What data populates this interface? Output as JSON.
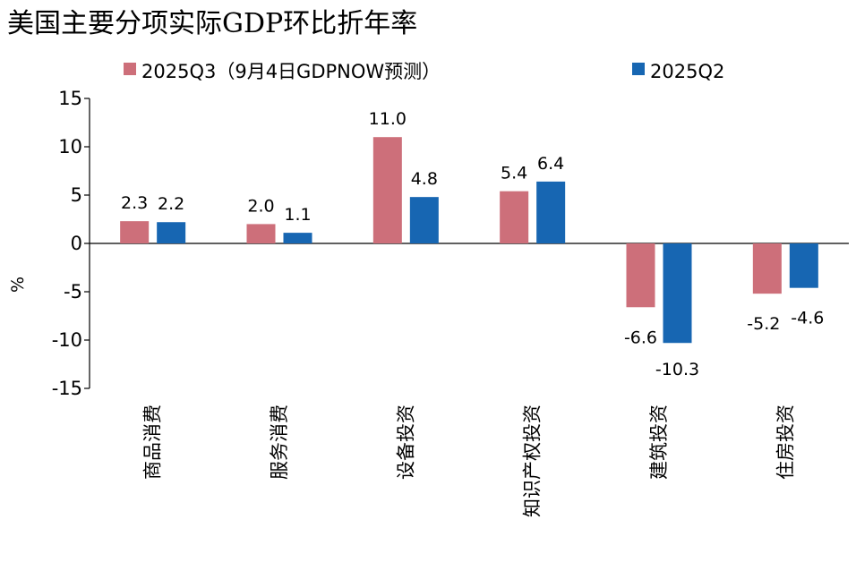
{
  "chart_data": {
    "type": "bar",
    "title": "美国主要分项实际GDP环比折年率",
    "ylabel": "%",
    "xlabel": "",
    "ylim": [
      -15,
      15
    ],
    "yticks": [
      15,
      10,
      5,
      0,
      -5,
      -10,
      -15
    ],
    "grid": false,
    "legend_position": "top",
    "categories": [
      "商品消费",
      "服务消费",
      "设备投资",
      "知识产权投资",
      "建筑投资",
      "住房投资"
    ],
    "series": [
      {
        "name": "2025Q3（9月4日GDPNOW预测）",
        "color": "#CD6F7A",
        "values": [
          2.3,
          2.0,
          11.0,
          5.4,
          -6.6,
          -5.2
        ]
      },
      {
        "name": "2025Q2",
        "color": "#1766B2",
        "values": [
          2.2,
          1.1,
          4.8,
          6.4,
          -10.3,
          -4.6
        ]
      }
    ]
  }
}
